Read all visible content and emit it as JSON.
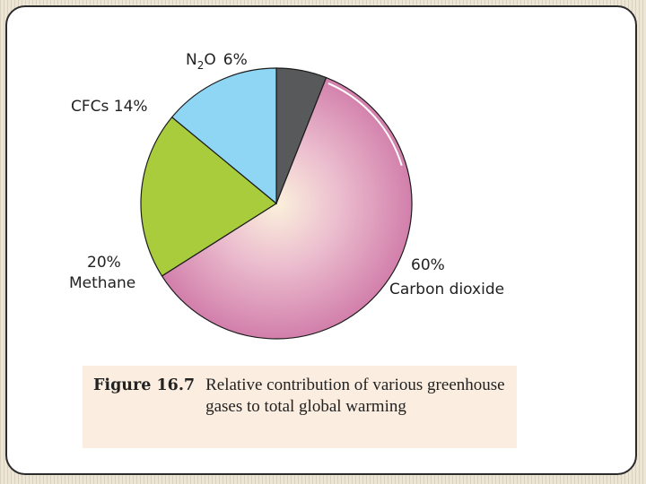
{
  "chart_data": {
    "type": "pie",
    "slices": [
      {
        "name": "N2O",
        "value": 6,
        "label": "6%",
        "color": "#58595b"
      },
      {
        "name": "Carbon dioxide",
        "value": 60,
        "label": "60%",
        "color": "#d98eb4"
      },
      {
        "name": "Methane",
        "value": 20,
        "label": "20%",
        "color": "#a8cc3c"
      },
      {
        "name": "CFCs",
        "value": 14,
        "label": "14%",
        "color": "#8fd6f5"
      }
    ],
    "start": "12 o'clock, clockwise",
    "legend": "none"
  },
  "labels": {
    "n2o_base": "N",
    "n2o_sub": "2",
    "n2o_tail": "O",
    "n2o_pct": "6%",
    "cfcs": "CFCs 14%",
    "methane_pct": "20%",
    "methane_name": "Methane",
    "co2_pct": "60%",
    "co2_name": "Carbon dioxide"
  },
  "caption": {
    "label": "Figure 16.7",
    "text": "Relative contribution of various greenhouse gases to total global warming"
  }
}
